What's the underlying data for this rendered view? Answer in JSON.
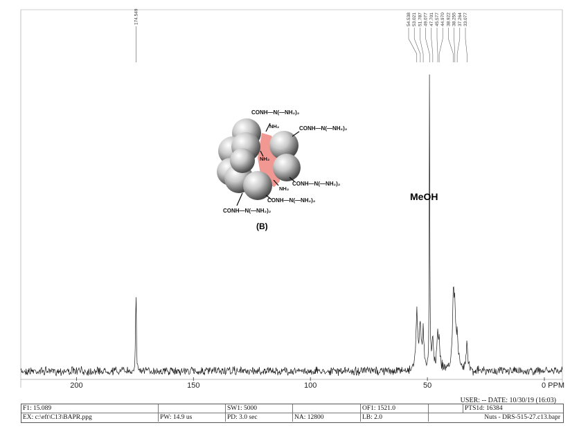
{
  "chart_data": {
    "type": "line",
    "x_unit": "PPM",
    "xlim": [
      0,
      225
    ],
    "x_reversed": true,
    "x_ticks": [
      200,
      150,
      100,
      50,
      0
    ],
    "x_tick_labels": [
      "200",
      "150",
      "100",
      "50",
      "0 PPM"
    ],
    "peak_labels": [
      "174.549",
      "54.538",
      "53.021",
      "51.787",
      "49.077",
      "47.701",
      "45.577",
      "44.970",
      "38.922",
      "38.255",
      "37.264",
      "33.077"
    ],
    "peaks": [
      {
        "ppm": 174.549,
        "height": 0.27
      },
      {
        "ppm": 54.538,
        "height": 0.18
      },
      {
        "ppm": 53.021,
        "height": 0.13
      },
      {
        "ppm": 51.787,
        "height": 0.11
      },
      {
        "ppm": 49.077,
        "height": 1.0
      },
      {
        "ppm": 47.701,
        "height": 0.09
      },
      {
        "ppm": 45.577,
        "height": 0.09
      },
      {
        "ppm": 44.97,
        "height": 0.07
      },
      {
        "ppm": 38.922,
        "height": 0.2
      },
      {
        "ppm": 38.255,
        "height": 0.15
      },
      {
        "ppm": 37.264,
        "height": 0.09
      },
      {
        "ppm": 33.077,
        "height": 0.09
      }
    ],
    "annotations": [
      "MeOH"
    ]
  },
  "structure": {
    "surface_groups": [
      "CONH—N(—NH₂)₂",
      "CONH—N(—NH₂)₂",
      "CONH—N(—NH₂)₂",
      "CONH—N(—NH₂)₂",
      "CONH—N(—NH₂)₂"
    ],
    "core_labels": [
      "NH₂",
      "NH₂",
      "NH₂"
    ],
    "caption": "(B)"
  },
  "footer": {
    "user_line": "USER: -- DATE: 10/30/19 (16:03)",
    "row1": [
      "F1: 15.089",
      "SW1: 5000",
      "OF1: 1521.0",
      "PTS1d: 16384"
    ],
    "row2": [
      "EX: c:\\eft\\C13\\BAPR.ppg",
      "PW: 14.9 us",
      "PD: 3.0 sec",
      "NA: 12800",
      "LB: 2.0",
      "Nuts - DRS-515-27.c13.bapr"
    ]
  },
  "colors": {
    "trace": "#1a1a1a",
    "core": "#e8433a",
    "sphere": "#bdbdbd"
  }
}
